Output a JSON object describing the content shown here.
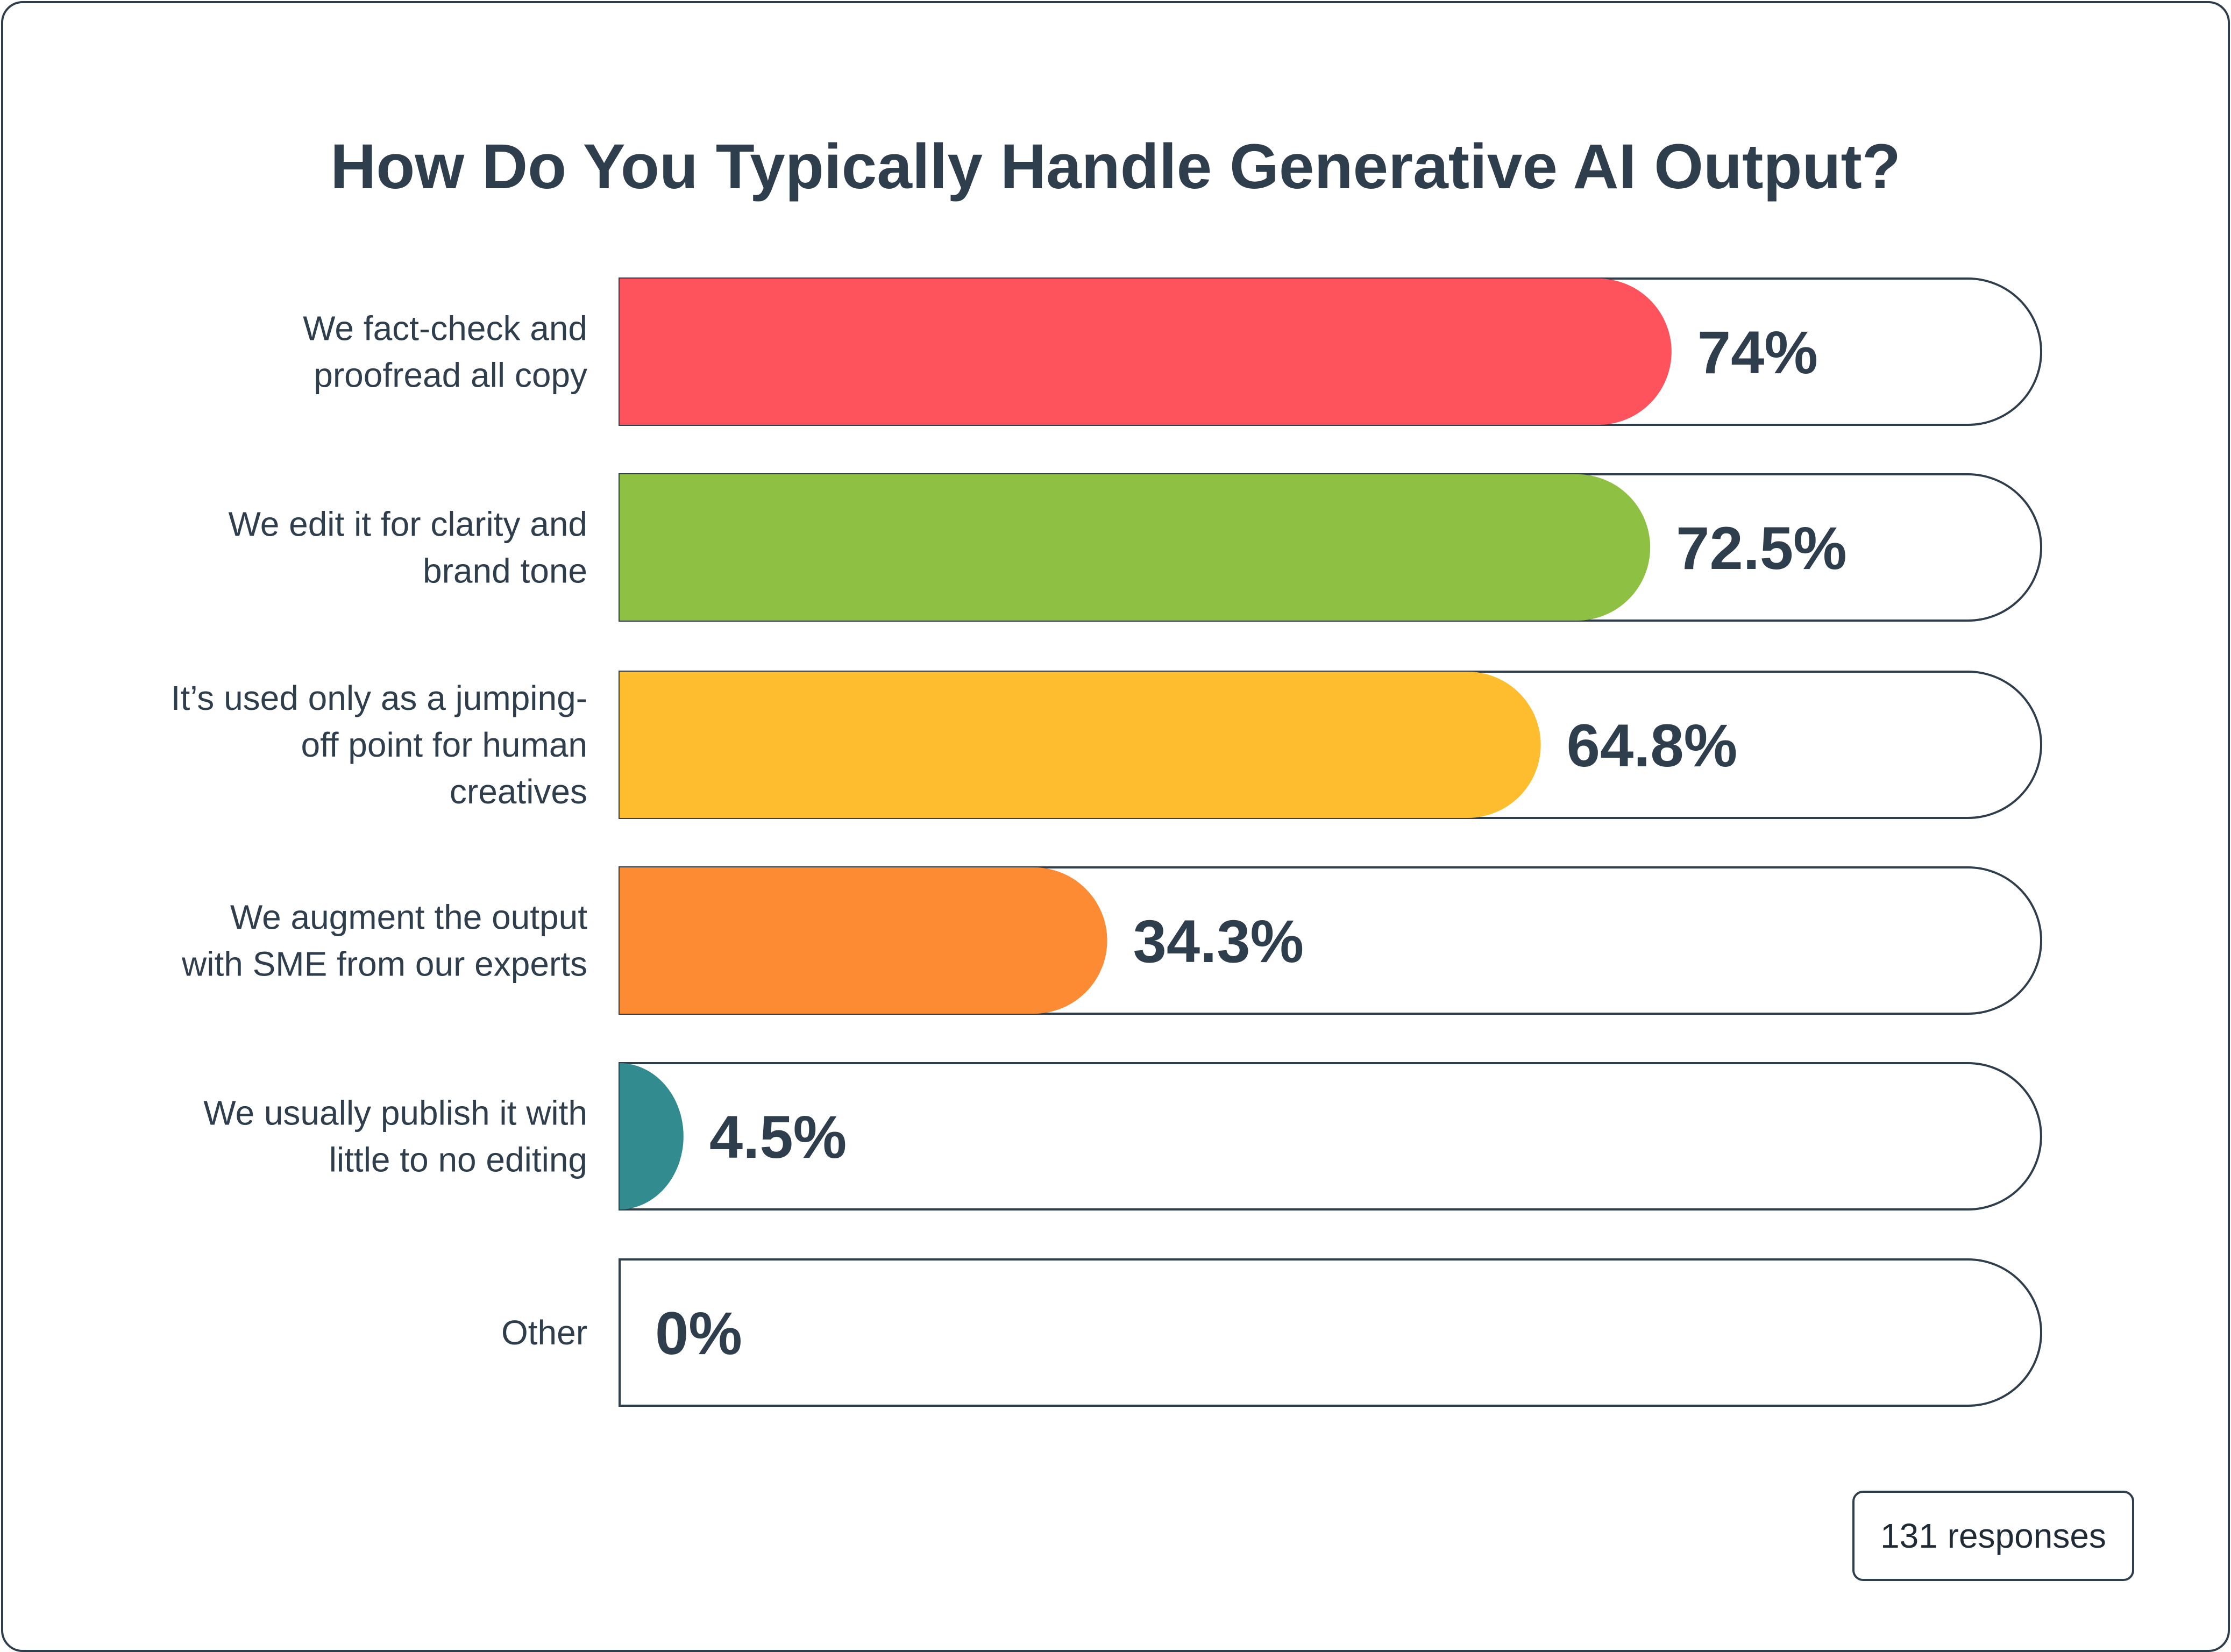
{
  "chart_data": {
    "type": "bar",
    "orientation": "horizontal",
    "title": "How Do You Typically Handle Generative AI Output?",
    "categories": [
      [
        "We fact-check and",
        "proofread all copy"
      ],
      [
        "We edit it for clarity and",
        "brand tone"
      ],
      [
        "It’s used only as a jumping-",
        "off point for human",
        "creatives"
      ],
      [
        "We augment the output",
        "with SME from our experts"
      ],
      [
        "We usually publish it with",
        "little to no editing"
      ],
      [
        "Other"
      ]
    ],
    "values": [
      74,
      72.5,
      64.8,
      34.3,
      4.5,
      0
    ],
    "value_labels": [
      "74%",
      "72.5%",
      "64.8%",
      "34.3%",
      "4.5%",
      "0%"
    ],
    "colors": [
      "#fe535c",
      "#8dc043",
      "#fdbd2e",
      "#fd8b34",
      "#328b8f",
      "#ffffff"
    ],
    "xlim": [
      0,
      100
    ],
    "grid": false,
    "legend": "none"
  },
  "footer": {
    "responses": "131 responses"
  }
}
